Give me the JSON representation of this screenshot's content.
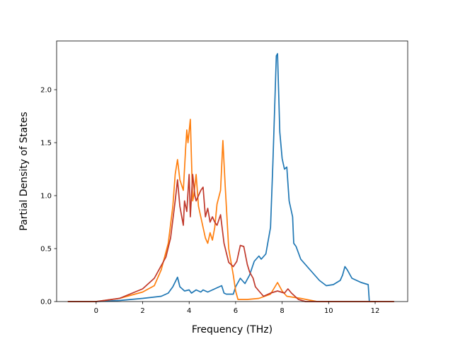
{
  "chart_data": {
    "type": "line",
    "title": "",
    "xlabel": "Frequency (THz)",
    "ylabel": "Partial Density of States",
    "xlim": [
      -1.7,
      13.4
    ],
    "ylim": [
      0.0,
      2.46
    ],
    "xticks": [
      0,
      2,
      4,
      6,
      8,
      10,
      12
    ],
    "xtick_labels": [
      "0",
      "2",
      "4",
      "6",
      "8",
      "10",
      "12"
    ],
    "yticks": [
      0.0,
      0.5,
      1.0,
      1.5,
      2.0
    ],
    "ytick_labels": [
      "0.0",
      "0.5",
      "1.0",
      "1.5",
      "2.0"
    ],
    "grid": false,
    "legend": "none",
    "series": [
      {
        "color": "#1f77b4",
        "points": [
          [
            -1.2,
            0.0
          ],
          [
            0.0,
            0.0
          ],
          [
            1.0,
            0.01
          ],
          [
            2.0,
            0.03
          ],
          [
            2.8,
            0.05
          ],
          [
            3.1,
            0.08
          ],
          [
            3.3,
            0.14
          ],
          [
            3.5,
            0.23
          ],
          [
            3.6,
            0.14
          ],
          [
            3.8,
            0.1
          ],
          [
            4.0,
            0.11
          ],
          [
            4.1,
            0.08
          ],
          [
            4.3,
            0.11
          ],
          [
            4.5,
            0.09
          ],
          [
            4.6,
            0.11
          ],
          [
            4.8,
            0.09
          ],
          [
            5.0,
            0.11
          ],
          [
            5.2,
            0.13
          ],
          [
            5.4,
            0.15
          ],
          [
            5.5,
            0.08
          ],
          [
            5.6,
            0.07
          ],
          [
            5.9,
            0.07
          ],
          [
            6.0,
            0.14
          ],
          [
            6.2,
            0.22
          ],
          [
            6.4,
            0.17
          ],
          [
            6.6,
            0.25
          ],
          [
            6.8,
            0.38
          ],
          [
            7.0,
            0.43
          ],
          [
            7.1,
            0.4
          ],
          [
            7.3,
            0.45
          ],
          [
            7.5,
            0.7
          ],
          [
            7.6,
            1.3
          ],
          [
            7.75,
            2.32
          ],
          [
            7.8,
            2.34
          ],
          [
            7.9,
            1.6
          ],
          [
            8.0,
            1.35
          ],
          [
            8.1,
            1.25
          ],
          [
            8.2,
            1.27
          ],
          [
            8.3,
            0.95
          ],
          [
            8.45,
            0.8
          ],
          [
            8.5,
            0.55
          ],
          [
            8.6,
            0.52
          ],
          [
            8.8,
            0.4
          ],
          [
            9.2,
            0.3
          ],
          [
            9.6,
            0.2
          ],
          [
            9.9,
            0.15
          ],
          [
            10.2,
            0.16
          ],
          [
            10.5,
            0.2
          ],
          [
            10.6,
            0.25
          ],
          [
            10.7,
            0.33
          ],
          [
            10.8,
            0.3
          ],
          [
            11.0,
            0.22
          ],
          [
            11.4,
            0.18
          ],
          [
            11.7,
            0.16
          ],
          [
            11.75,
            0.0
          ],
          [
            12.0,
            0.0
          ]
        ]
      },
      {
        "color": "#ff7f0e",
        "points": [
          [
            -1.2,
            0.0
          ],
          [
            0.0,
            0.0
          ],
          [
            1.0,
            0.03
          ],
          [
            2.0,
            0.09
          ],
          [
            2.5,
            0.15
          ],
          [
            2.8,
            0.3
          ],
          [
            3.1,
            0.55
          ],
          [
            3.3,
            0.9
          ],
          [
            3.4,
            1.2
          ],
          [
            3.5,
            1.34
          ],
          [
            3.6,
            1.15
          ],
          [
            3.75,
            1.05
          ],
          [
            3.85,
            1.45
          ],
          [
            3.9,
            1.62
          ],
          [
            3.95,
            1.5
          ],
          [
            4.05,
            1.72
          ],
          [
            4.15,
            0.95
          ],
          [
            4.2,
            1.0
          ],
          [
            4.3,
            1.2
          ],
          [
            4.4,
            0.9
          ],
          [
            4.6,
            0.7
          ],
          [
            4.7,
            0.6
          ],
          [
            4.8,
            0.55
          ],
          [
            4.9,
            0.65
          ],
          [
            5.0,
            0.58
          ],
          [
            5.1,
            0.7
          ],
          [
            5.2,
            0.92
          ],
          [
            5.35,
            1.05
          ],
          [
            5.45,
            1.52
          ],
          [
            5.55,
            1.1
          ],
          [
            5.7,
            0.5
          ],
          [
            5.9,
            0.25
          ],
          [
            6.0,
            0.1
          ],
          [
            6.1,
            0.02
          ],
          [
            6.5,
            0.02
          ],
          [
            7.0,
            0.03
          ],
          [
            7.5,
            0.07
          ],
          [
            7.8,
            0.18
          ],
          [
            8.0,
            0.1
          ],
          [
            8.2,
            0.05
          ],
          [
            8.5,
            0.04
          ],
          [
            8.8,
            0.03
          ],
          [
            9.5,
            0.0
          ],
          [
            12.8,
            0.0
          ]
        ]
      },
      {
        "color": "#c0392b",
        "points": [
          [
            -1.2,
            0.0
          ],
          [
            0.0,
            0.0
          ],
          [
            1.0,
            0.03
          ],
          [
            2.0,
            0.12
          ],
          [
            2.5,
            0.22
          ],
          [
            3.0,
            0.42
          ],
          [
            3.2,
            0.6
          ],
          [
            3.4,
            0.95
          ],
          [
            3.5,
            1.15
          ],
          [
            3.6,
            0.9
          ],
          [
            3.75,
            0.72
          ],
          [
            3.8,
            0.95
          ],
          [
            3.9,
            0.85
          ],
          [
            4.0,
            1.2
          ],
          [
            4.05,
            0.8
          ],
          [
            4.15,
            1.2
          ],
          [
            4.25,
            1.0
          ],
          [
            4.3,
            0.95
          ],
          [
            4.4,
            1.0
          ],
          [
            4.5,
            1.05
          ],
          [
            4.6,
            1.08
          ],
          [
            4.7,
            0.8
          ],
          [
            4.8,
            0.88
          ],
          [
            4.9,
            0.75
          ],
          [
            5.0,
            0.8
          ],
          [
            5.1,
            0.75
          ],
          [
            5.2,
            0.72
          ],
          [
            5.35,
            0.82
          ],
          [
            5.5,
            0.55
          ],
          [
            5.7,
            0.37
          ],
          [
            5.9,
            0.33
          ],
          [
            6.05,
            0.38
          ],
          [
            6.2,
            0.53
          ],
          [
            6.35,
            0.52
          ],
          [
            6.5,
            0.35
          ],
          [
            6.6,
            0.28
          ],
          [
            6.75,
            0.22
          ],
          [
            6.85,
            0.14
          ],
          [
            7.0,
            0.1
          ],
          [
            7.2,
            0.05
          ],
          [
            7.5,
            0.08
          ],
          [
            7.8,
            0.1
          ],
          [
            8.1,
            0.08
          ],
          [
            8.25,
            0.12
          ],
          [
            8.4,
            0.08
          ],
          [
            8.7,
            0.02
          ],
          [
            9.0,
            0.0
          ],
          [
            12.8,
            0.0
          ]
        ]
      }
    ]
  }
}
